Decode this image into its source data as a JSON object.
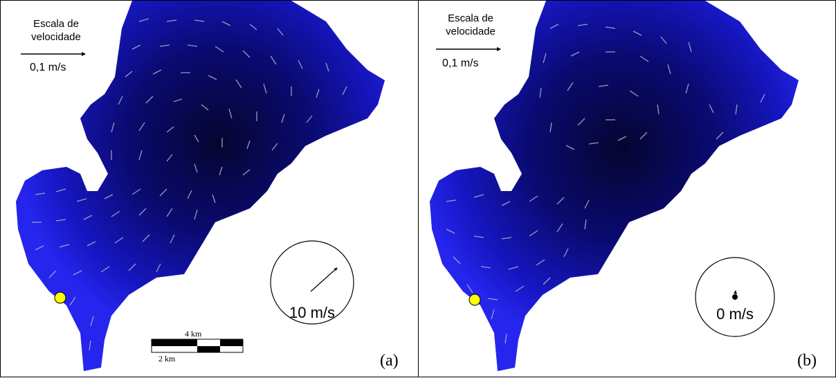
{
  "panels": [
    {
      "id": "a",
      "scale_title_line1": "Escala de",
      "scale_title_line2": "velocidade",
      "scale_value": "0,1 m/s",
      "wind_label": "10 m/s",
      "wind_direction": "northeast",
      "panel_label": "(a)",
      "scalebar": {
        "top_label": "4 km",
        "bottom_label": "2 km"
      }
    },
    {
      "id": "b",
      "scale_title_line1": "Escala de",
      "scale_title_line2": "velocidade",
      "scale_value": "0,1 m/s",
      "wind_label": "0 m/s",
      "wind_direction": "none",
      "panel_label": "(b)"
    }
  ],
  "colors": {
    "water_edge": "#2525ee",
    "water_deep": "#050530",
    "current_arrows": "#b4b4c8",
    "station_marker": "#ffff00"
  },
  "icons": {
    "velocity_scale": "right-arrow-icon",
    "wind_indicator": "wind-circle-icon",
    "station": "station-marker-icon"
  }
}
